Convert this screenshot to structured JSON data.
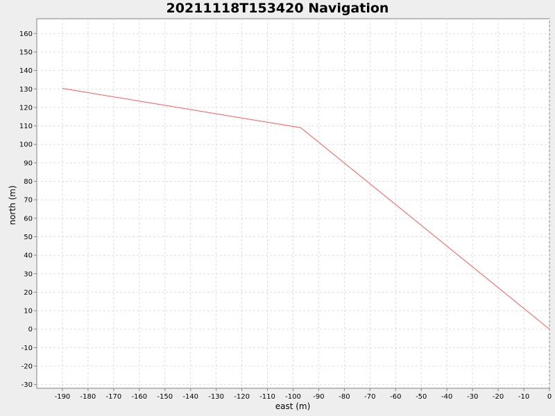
{
  "chart_data": {
    "type": "line",
    "title": "20211118T153420 Navigation",
    "xlabel": "east (m)",
    "ylabel": "north (m)",
    "xlim": [
      -200,
      0
    ],
    "ylim": [
      -32,
      168
    ],
    "xticks": [
      -190,
      -180,
      -170,
      -160,
      -150,
      -140,
      -130,
      -120,
      -110,
      -100,
      -90,
      -80,
      -70,
      -60,
      -50,
      -40,
      -30,
      -20,
      -10,
      0
    ],
    "yticks": [
      -30,
      -20,
      -10,
      0,
      10,
      20,
      30,
      40,
      50,
      60,
      70,
      80,
      90,
      100,
      110,
      120,
      130,
      140,
      150,
      160
    ],
    "grid": true,
    "series": [
      {
        "color": "#ff5555",
        "points": [
          [
            -190,
            130.3
          ],
          [
            -97,
            109
          ],
          [
            0,
            0
          ]
        ]
      }
    ]
  }
}
